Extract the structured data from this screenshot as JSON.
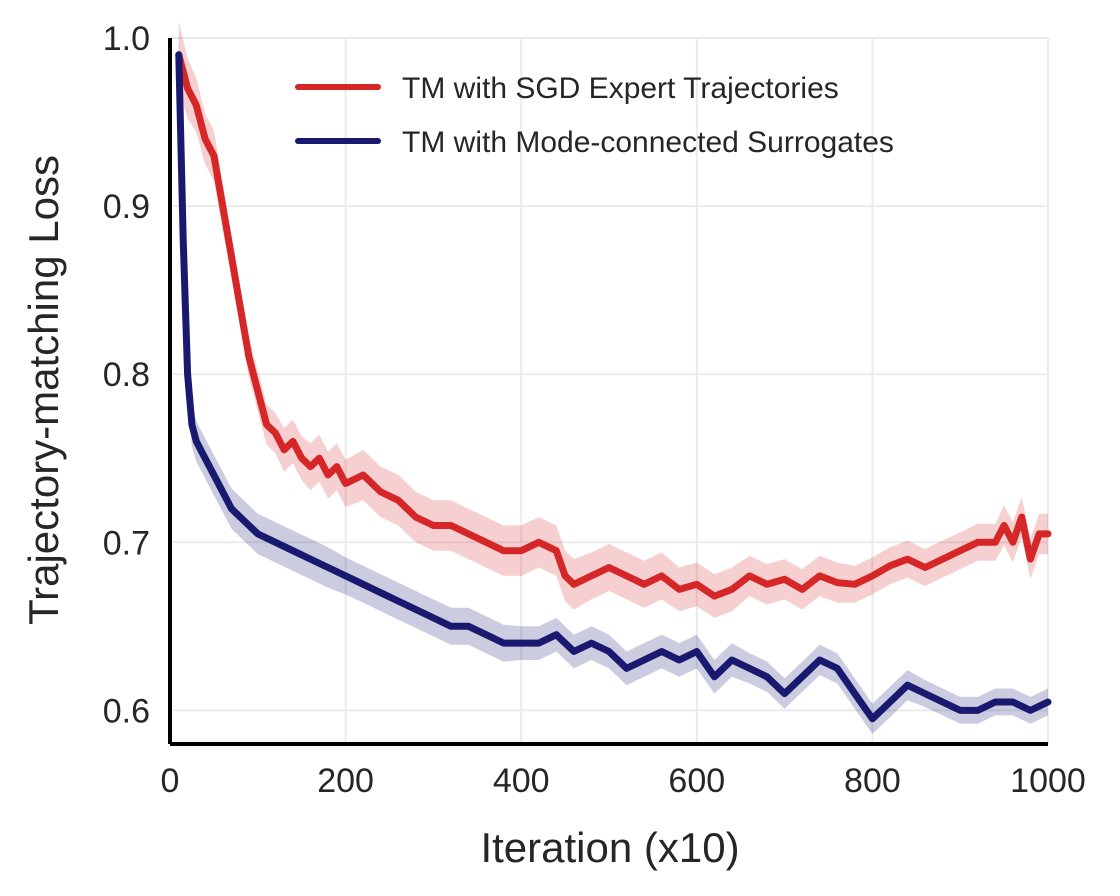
{
  "chart_data": {
    "type": "line",
    "title": "",
    "xlabel": "Iteration (x10)",
    "ylabel": "Trajectory-matching Loss",
    "xlim": [
      0,
      1000
    ],
    "ylim": [
      0.58,
      1.0
    ],
    "x_ticks": [
      "0",
      "200",
      "400",
      "600",
      "800",
      "1000"
    ],
    "y_ticks": [
      "0.6",
      "0.7",
      "0.8",
      "0.9",
      "1.0"
    ],
    "grid": true,
    "legend_position": "top-right",
    "shaded_band": "variability band around each series",
    "series": [
      {
        "name": "TM with SGD Expert Trajectories",
        "color": "#d62728",
        "x": [
          10,
          20,
          30,
          40,
          50,
          60,
          70,
          80,
          90,
          100,
          110,
          120,
          130,
          140,
          150,
          160,
          170,
          180,
          190,
          200,
          220,
          240,
          260,
          280,
          300,
          320,
          340,
          360,
          380,
          400,
          420,
          440,
          450,
          460,
          480,
          500,
          520,
          540,
          560,
          580,
          600,
          620,
          640,
          660,
          680,
          700,
          720,
          740,
          760,
          780,
          800,
          820,
          840,
          860,
          880,
          900,
          920,
          940,
          950,
          960,
          970,
          980,
          990,
          1000
        ],
        "y": [
          0.99,
          0.97,
          0.96,
          0.94,
          0.93,
          0.9,
          0.87,
          0.84,
          0.81,
          0.79,
          0.77,
          0.765,
          0.755,
          0.76,
          0.75,
          0.745,
          0.75,
          0.74,
          0.745,
          0.735,
          0.74,
          0.73,
          0.725,
          0.715,
          0.71,
          0.71,
          0.705,
          0.7,
          0.695,
          0.695,
          0.7,
          0.695,
          0.68,
          0.675,
          0.68,
          0.685,
          0.68,
          0.675,
          0.68,
          0.672,
          0.675,
          0.668,
          0.672,
          0.68,
          0.675,
          0.678,
          0.672,
          0.68,
          0.676,
          0.675,
          0.68,
          0.686,
          0.69,
          0.685,
          0.69,
          0.695,
          0.7,
          0.7,
          0.71,
          0.7,
          0.715,
          0.69,
          0.705,
          0.705
        ],
        "band": [
          0.02,
          0.018,
          0.016,
          0.015,
          0.015,
          0.014,
          0.013,
          0.012,
          0.012,
          0.012,
          0.012,
          0.012,
          0.013,
          0.013,
          0.013,
          0.014,
          0.014,
          0.014,
          0.014,
          0.014,
          0.015,
          0.015,
          0.015,
          0.015,
          0.015,
          0.015,
          0.015,
          0.015,
          0.015,
          0.015,
          0.015,
          0.015,
          0.015,
          0.015,
          0.014,
          0.014,
          0.014,
          0.014,
          0.014,
          0.013,
          0.013,
          0.013,
          0.013,
          0.012,
          0.012,
          0.012,
          0.012,
          0.012,
          0.012,
          0.011,
          0.011,
          0.011,
          0.011,
          0.011,
          0.011,
          0.011,
          0.011,
          0.011,
          0.012,
          0.012,
          0.012,
          0.012,
          0.012,
          0.012
        ]
      },
      {
        "name": "TM with Mode-connected Surrogates",
        "color": "#191970",
        "x": [
          10,
          15,
          20,
          25,
          30,
          40,
          50,
          60,
          70,
          80,
          90,
          100,
          120,
          140,
          160,
          180,
          200,
          220,
          240,
          260,
          280,
          300,
          320,
          340,
          360,
          380,
          400,
          420,
          440,
          460,
          480,
          500,
          520,
          540,
          560,
          580,
          600,
          620,
          640,
          660,
          680,
          700,
          720,
          740,
          760,
          780,
          800,
          820,
          840,
          860,
          880,
          900,
          920,
          940,
          960,
          980,
          1000
        ],
        "y": [
          0.99,
          0.88,
          0.8,
          0.77,
          0.76,
          0.75,
          0.74,
          0.73,
          0.72,
          0.715,
          0.71,
          0.705,
          0.7,
          0.695,
          0.69,
          0.685,
          0.68,
          0.675,
          0.67,
          0.665,
          0.66,
          0.655,
          0.65,
          0.65,
          0.645,
          0.64,
          0.64,
          0.64,
          0.645,
          0.635,
          0.64,
          0.635,
          0.625,
          0.63,
          0.635,
          0.63,
          0.635,
          0.62,
          0.63,
          0.625,
          0.62,
          0.61,
          0.62,
          0.63,
          0.625,
          0.61,
          0.595,
          0.605,
          0.615,
          0.61,
          0.605,
          0.6,
          0.6,
          0.605,
          0.605,
          0.6,
          0.605
        ],
        "band": [
          0.015,
          0.015,
          0.014,
          0.013,
          0.012,
          0.012,
          0.012,
          0.012,
          0.012,
          0.012,
          0.012,
          0.012,
          0.012,
          0.012,
          0.012,
          0.012,
          0.011,
          0.011,
          0.011,
          0.011,
          0.011,
          0.011,
          0.011,
          0.011,
          0.011,
          0.011,
          0.01,
          0.01,
          0.01,
          0.01,
          0.01,
          0.01,
          0.01,
          0.01,
          0.01,
          0.01,
          0.01,
          0.01,
          0.01,
          0.009,
          0.009,
          0.009,
          0.009,
          0.009,
          0.009,
          0.009,
          0.009,
          0.009,
          0.009,
          0.008,
          0.008,
          0.008,
          0.008,
          0.008,
          0.008,
          0.008,
          0.008
        ]
      }
    ]
  }
}
